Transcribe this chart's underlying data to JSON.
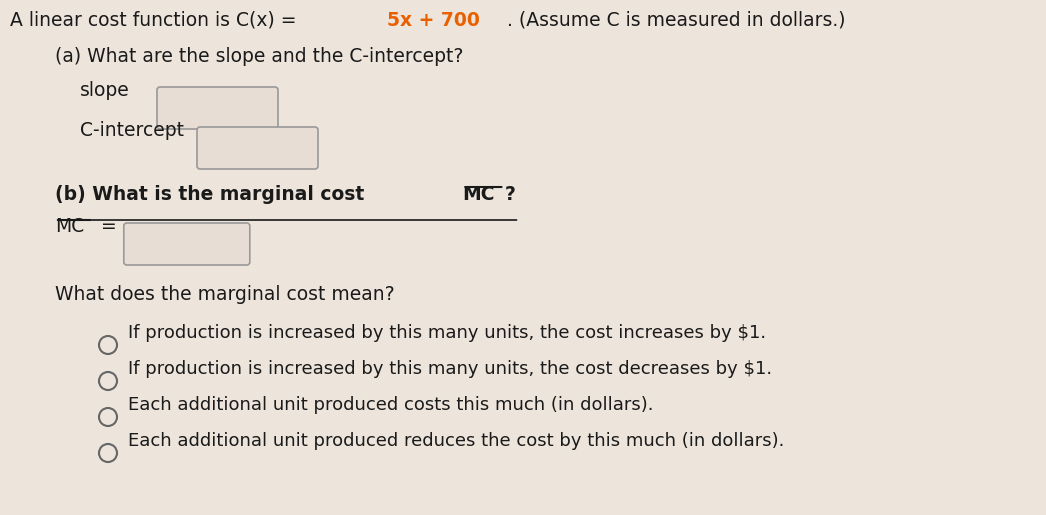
{
  "background_color": "#ede5dc",
  "title_plain1": "A linear cost function is C(x) = ",
  "title_bold": "5x + 700",
  "title_plain2": ". (Assume C is measured in dollars.)",
  "part_a_label": "(a) What are the slope and the C-intercept?",
  "slope_label": "slope",
  "cintercept_label": "C-intercept",
  "part_b_prefix": "(b) What is the marginal cost ",
  "part_b_mc": "MC",
  "part_b_suffix": "?",
  "mc_row_label": "MC",
  "mc_eq": " =",
  "marginal_q": "What does the marginal cost mean?",
  "options": [
    "If production is increased by this many units, the cost increases by $1.",
    "If production is increased by this many units, the cost decreases by $1.",
    "Each additional unit produced costs this much (in dollars).",
    "Each additional unit produced reduces the cost by this much (in dollars)."
  ],
  "box_fill_color": "#e8ddd4",
  "box_border_color": "#999999",
  "text_color": "#1a1a1a",
  "bold_color": "#e86000",
  "underline_color": "#1a1a1a",
  "font_size": 13.5,
  "option_font_size": 13.0,
  "circle_r": 9,
  "circle_edge_color": "#666666"
}
